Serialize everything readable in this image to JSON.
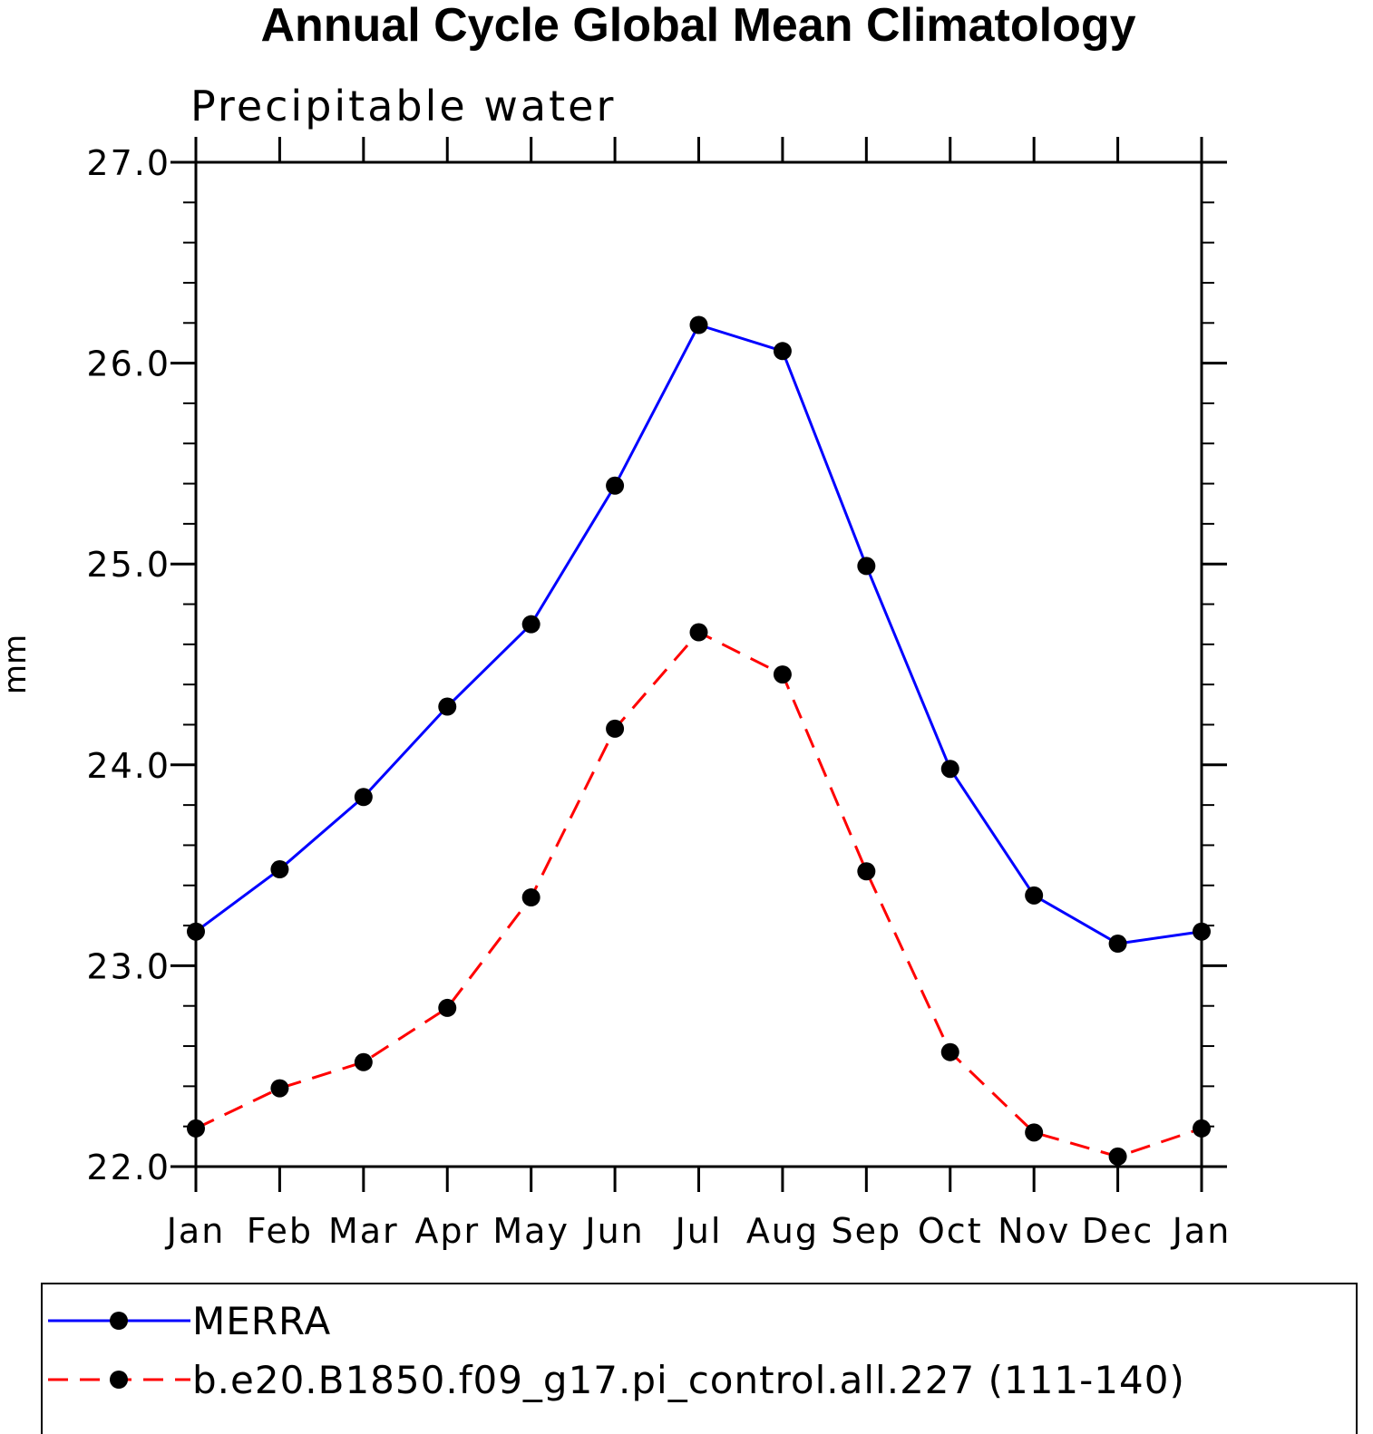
{
  "chart_data": {
    "type": "line",
    "title": "Annual Cycle Global Mean Climatology",
    "subtitle": "Precipitable water",
    "xlabel": "",
    "ylabel": "mm",
    "categories": [
      "Jan",
      "Feb",
      "Mar",
      "Apr",
      "May",
      "Jun",
      "Jul",
      "Aug",
      "Sep",
      "Oct",
      "Nov",
      "Dec",
      "Jan"
    ],
    "ylim": [
      22.0,
      27.0
    ],
    "yticks": [
      "22.0",
      "23.0",
      "24.0",
      "25.0",
      "26.0",
      "27.0"
    ],
    "grid": false,
    "legend_position": "bottom",
    "series": [
      {
        "name": "MERRA",
        "color": "#0000ff",
        "style": "solid",
        "marker": "filled-circle",
        "values": [
          23.17,
          23.48,
          23.84,
          24.29,
          24.7,
          25.39,
          26.19,
          26.06,
          24.99,
          23.98,
          23.35,
          23.11,
          23.17
        ]
      },
      {
        "name": "b.e20.B1850.f09_g17.pi_control.all.227 (111-140)",
        "color": "#ff0000",
        "style": "dashed",
        "marker": "filled-circle",
        "values": [
          22.19,
          22.39,
          22.52,
          22.79,
          23.34,
          24.18,
          24.66,
          24.45,
          23.47,
          22.57,
          22.17,
          22.05,
          22.19
        ]
      }
    ]
  }
}
